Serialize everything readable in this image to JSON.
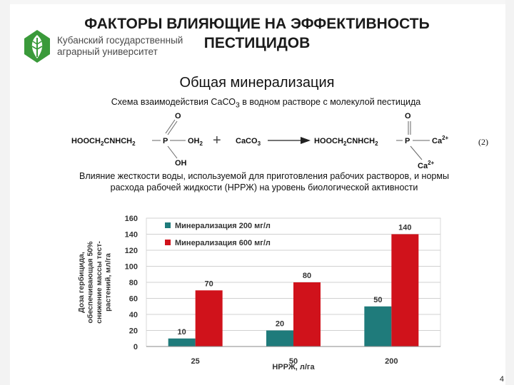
{
  "slide": {
    "title": "ФАКТОРЫ ВЛИЯЮЩИЕ НА ЭФФЕКТИВНОСТЬ ПЕСТИЦИДОВ",
    "university": {
      "line1": "Кубанский государственный",
      "line2": "аграрный университет"
    },
    "subtitle": "Общая минерализация",
    "scheme_caption": {
      "prefix": "Схема взаимодействия СаСО",
      "subscript": "3",
      "suffix": " в водном растворе с молекулой пестицида"
    },
    "reaction": {
      "reactant_chain": "HOOCH2CNHCH2",
      "p_atom": "P",
      "o_top": "O",
      "oh_right": "OH2",
      "oh_bottom": "OH",
      "plus": "+",
      "reagent": "CaCO3",
      "product_chain": "HOOCH2CNHCH2",
      "product_p": "P",
      "product_o_top": "O",
      "ca_right": "Ca2+",
      "ca_bottom": "Ca2+",
      "number": "(2)"
    },
    "influence_caption_line1": "Влияние жесткости воды, используемой для приготовления рабочих растворов, и нормы",
    "influence_caption_line2": "расхода рабочей жидкости (НРРЖ) на уровень биологической активности",
    "page_number": "4"
  },
  "colors": {
    "series_1": "#1f7b7b",
    "series_2": "#d0121b",
    "logo": "#3a9a3a"
  },
  "icons": {
    "logo": "leaf-logo-icon",
    "arrow": "reaction-arrow-icon"
  },
  "chart_data": {
    "type": "bar",
    "categories": [
      "25",
      "50",
      "200"
    ],
    "series": [
      {
        "name": "Минерализация 200 мг/л",
        "values": [
          10,
          20,
          50
        ]
      },
      {
        "name": "Минерализация 600 мг/л",
        "values": [
          70,
          80,
          140
        ]
      }
    ],
    "xlabel": "НРРЖ, л/га",
    "ylabel_lines": [
      "Доза гербицида,",
      "обеспечивающая 50%",
      "снижение массы тест-",
      "растений, мл/га"
    ],
    "yticks": [
      0,
      20,
      40,
      60,
      80,
      100,
      120,
      140,
      160
    ],
    "ylim": [
      0,
      160
    ],
    "grid": true,
    "legend": "top-left"
  }
}
